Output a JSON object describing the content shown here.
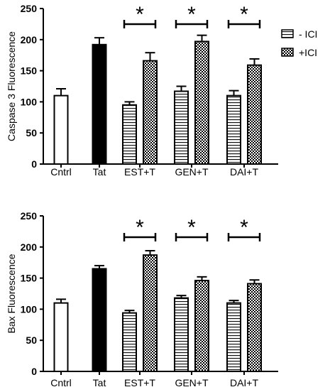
{
  "legend": {
    "position": "right",
    "items": [
      {
        "label": "- ICI",
        "pattern": "hstripes"
      },
      {
        "label": "+ICI",
        "pattern": "checker"
      }
    ]
  },
  "chart_data": [
    {
      "type": "bar",
      "ylabel": "Caspase 3 Fluorescence",
      "xlabel": "",
      "ylim": [
        0,
        250
      ],
      "yticks": [
        0,
        50,
        100,
        150,
        200,
        250
      ],
      "groups": [
        {
          "label": "Cntrl",
          "bars": [
            {
              "value": 110,
              "error": 11,
              "fill": "white"
            }
          ]
        },
        {
          "label": "Tat",
          "bars": [
            {
              "value": 192,
              "error": 11,
              "fill": "black"
            }
          ]
        },
        {
          "label": "EST+T",
          "bars": [
            {
              "value": 95,
              "error": 5,
              "fill": "hstripes"
            },
            {
              "value": 166,
              "error": 13,
              "fill": "checker"
            }
          ],
          "sig": "*"
        },
        {
          "label": "GEN+T",
          "bars": [
            {
              "value": 117,
              "error": 8,
              "fill": "hstripes"
            },
            {
              "value": 197,
              "error": 10,
              "fill": "checker"
            }
          ],
          "sig": "*"
        },
        {
          "label": "DAI+T",
          "bars": [
            {
              "value": 110,
              "error": 8,
              "fill": "hstripes"
            },
            {
              "value": 159,
              "error": 10,
              "fill": "checker"
            }
          ],
          "sig": "*"
        }
      ]
    },
    {
      "type": "bar",
      "ylabel": "Bax Fluorescence",
      "xlabel": "",
      "ylim": [
        0,
        250
      ],
      "yticks": [
        0,
        50,
        100,
        150,
        200,
        250
      ],
      "groups": [
        {
          "label": "Cntrl",
          "bars": [
            {
              "value": 110,
              "error": 6,
              "fill": "white"
            }
          ]
        },
        {
          "label": "Tat",
          "bars": [
            {
              "value": 165,
              "error": 5,
              "fill": "black"
            }
          ]
        },
        {
          "label": "EST+T",
          "bars": [
            {
              "value": 94,
              "error": 4,
              "fill": "hstripes"
            },
            {
              "value": 187,
              "error": 7,
              "fill": "checker"
            }
          ],
          "sig": "*"
        },
        {
          "label": "GEN+T",
          "bars": [
            {
              "value": 118,
              "error": 4,
              "fill": "hstripes"
            },
            {
              "value": 146,
              "error": 6,
              "fill": "checker"
            }
          ],
          "sig": "*"
        },
        {
          "label": "DAI+T",
          "bars": [
            {
              "value": 110,
              "error": 4,
              "fill": "hstripes"
            },
            {
              "value": 141,
              "error": 6,
              "fill": "checker"
            }
          ],
          "sig": "*"
        }
      ]
    }
  ]
}
